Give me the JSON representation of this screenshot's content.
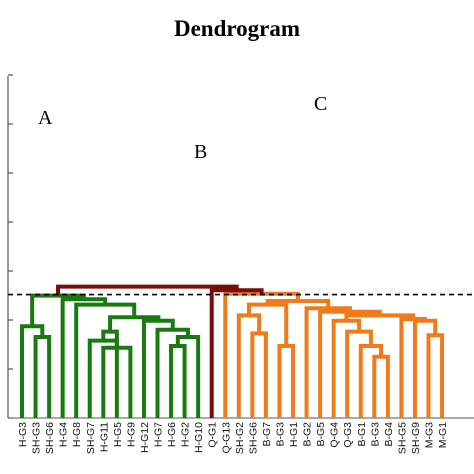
{
  "chart_data": {
    "type": "dendrogram",
    "title": "Dendrogram",
    "cut_line": {
      "style": "dashed",
      "color": "#000000"
    },
    "cluster_labels": [
      "A",
      "B",
      "C"
    ],
    "colors": {
      "green": "#1a7a12",
      "orange": "#f07b1a",
      "root": "#7a0c0c",
      "axis": "#555555"
    },
    "leaves": [
      "H-G3",
      "SH-G3",
      "SH-G6",
      "H-G4",
      "H-G8",
      "SH-G7",
      "H-G11",
      "H-G5",
      "H-G9",
      "H-G12",
      "H-G7",
      "H-G6",
      "H-G2",
      "H-G10",
      "Q-G1",
      "Q-G13",
      "SH-G2",
      "SH-G6",
      "B-G7",
      "B-G3",
      "H-G1",
      "B-G2",
      "B-G5",
      "Q-G4",
      "Q-G3",
      "B-G1",
      "B-G3",
      "B-G4",
      "SH-G5",
      "SH-G9",
      "M-G3",
      "M-G1"
    ],
    "merges": [
      {
        "left": 1,
        "right": 2,
        "height": 0.225,
        "color": "green"
      },
      {
        "left": 0,
        "right": -1,
        "height": 0.255,
        "color": "green"
      },
      {
        "left": 6,
        "right": 8,
        "height": 0.195,
        "color": "green"
      },
      {
        "left": 5,
        "right": -3,
        "height": 0.215,
        "color": "green"
      },
      {
        "left": 7,
        "right": -4,
        "height": 0.24,
        "color": "green"
      },
      {
        "left": 11,
        "right": 12,
        "height": 0.2,
        "color": "green"
      },
      {
        "left": -6,
        "right": 13,
        "height": 0.225,
        "color": "green"
      },
      {
        "left": 10,
        "right": -7,
        "height": 0.245,
        "color": "green"
      },
      {
        "left": 9,
        "right": -8,
        "height": 0.27,
        "color": "green"
      },
      {
        "left": -5,
        "right": -9,
        "height": 0.28,
        "color": "green"
      },
      {
        "left": 4,
        "right": -10,
        "height": 0.315,
        "color": "green"
      },
      {
        "left": 3,
        "right": -11,
        "height": 0.33,
        "color": "green"
      },
      {
        "left": -2,
        "right": -12,
        "height": 0.34,
        "color": "green"
      },
      {
        "left": 17,
        "right": 18,
        "height": 0.235,
        "color": "orange"
      },
      {
        "left": 16,
        "right": -14,
        "height": 0.285,
        "color": "orange"
      },
      {
        "left": 19,
        "right": 20,
        "height": 0.2,
        "color": "orange"
      },
      {
        "left": -15,
        "right": -16,
        "height": 0.315,
        "color": "orange"
      },
      {
        "left": 26,
        "right": 27,
        "height": 0.17,
        "color": "orange"
      },
      {
        "left": 25,
        "right": -18,
        "height": 0.2,
        "color": "orange"
      },
      {
        "left": 24,
        "right": -19,
        "height": 0.24,
        "color": "orange"
      },
      {
        "left": 23,
        "right": -20,
        "height": 0.27,
        "color": "orange"
      },
      {
        "left": 30,
        "right": 31,
        "height": 0.23,
        "color": "orange"
      },
      {
        "left": 29,
        "right": -22,
        "height": 0.27,
        "color": "orange"
      },
      {
        "left": 28,
        "right": -23,
        "height": 0.275,
        "color": "orange"
      },
      {
        "left": -21,
        "right": -24,
        "height": 0.285,
        "color": "orange"
      },
      {
        "left": 22,
        "right": -25,
        "height": 0.295,
        "color": "orange"
      },
      {
        "left": 21,
        "right": -26,
        "height": 0.305,
        "color": "orange"
      },
      {
        "left": -17,
        "right": -27,
        "height": 0.325,
        "color": "orange"
      },
      {
        "left": 15,
        "right": -28,
        "height": 0.345,
        "color": "orange"
      },
      {
        "left": 14,
        "right": -29,
        "height": 0.355,
        "color": "root"
      },
      {
        "left": -13,
        "right": -30,
        "height": 0.365,
        "color": "root"
      }
    ]
  }
}
